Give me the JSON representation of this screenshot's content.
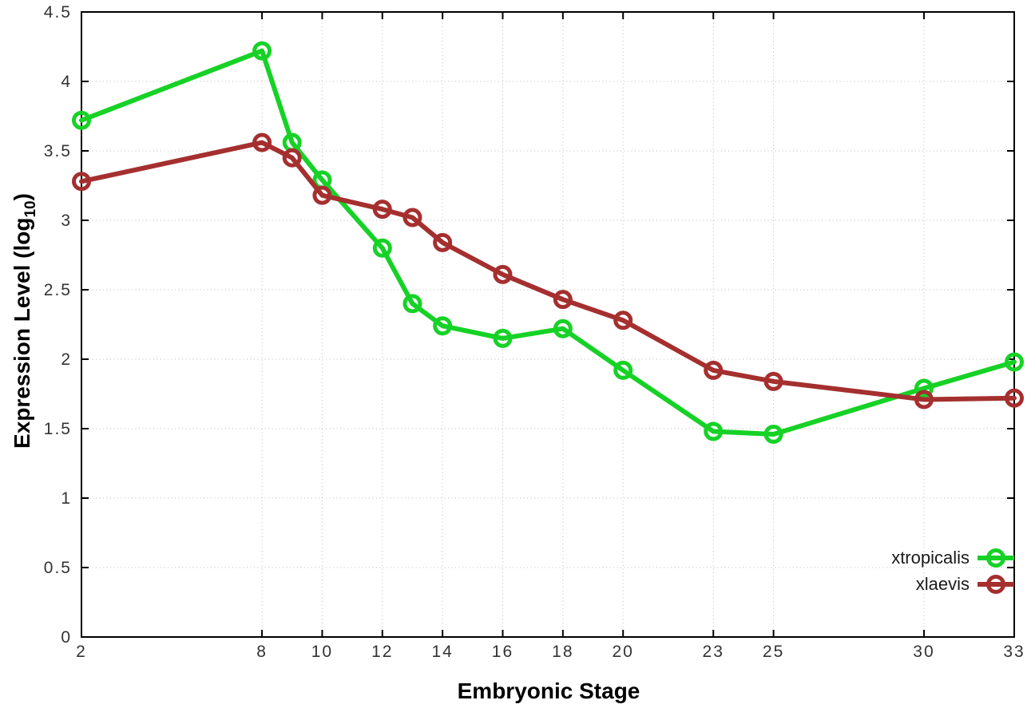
{
  "chart_data": {
    "type": "line",
    "title": "",
    "xlabel": "Embryonic Stage",
    "ylabel_prefix": "Expression Level (log",
    "ylabel_sub": "10",
    "ylabel_suffix": ")",
    "x": [
      2,
      8,
      9,
      10,
      12,
      13,
      14,
      16,
      18,
      20,
      23,
      25,
      30,
      33
    ],
    "series": [
      {
        "name": "xtropicalis",
        "color": "#16d226",
        "values": [
          3.72,
          4.22,
          3.56,
          3.29,
          2.8,
          2.4,
          2.24,
          2.15,
          2.22,
          1.92,
          1.48,
          1.46,
          1.79,
          1.98
        ]
      },
      {
        "name": "xlaevis",
        "color": "#a52f2f",
        "values": [
          3.28,
          3.56,
          3.45,
          3.18,
          3.08,
          3.02,
          2.84,
          2.61,
          2.43,
          2.28,
          1.92,
          1.84,
          1.71,
          1.72
        ]
      }
    ],
    "x_ticks": [
      {
        "v": 2,
        "label": "2"
      },
      {
        "v": 8,
        "label": "8"
      },
      {
        "v": 10,
        "label": "10"
      },
      {
        "v": 12,
        "label": "12"
      },
      {
        "v": 14,
        "label": "14"
      },
      {
        "v": 16,
        "label": "16"
      },
      {
        "v": 18,
        "label": "18"
      },
      {
        "v": 20,
        "label": "20"
      },
      {
        "v": 23,
        "label": "23"
      },
      {
        "v": 25,
        "label": "25"
      },
      {
        "v": 30,
        "label": "30"
      },
      {
        "v": 33,
        "label": "33"
      }
    ],
    "y_ticks": [
      {
        "v": 0,
        "label": "0"
      },
      {
        "v": 0.5,
        "label": "0.5"
      },
      {
        "v": 1,
        "label": "1"
      },
      {
        "v": 1.5,
        "label": "1.5"
      },
      {
        "v": 2,
        "label": "2"
      },
      {
        "v": 2.5,
        "label": "2.5"
      },
      {
        "v": 3,
        "label": "3"
      },
      {
        "v": 3.5,
        "label": "3.5"
      },
      {
        "v": 4,
        "label": "4"
      },
      {
        "v": 4.5,
        "label": "4.5"
      }
    ],
    "xlim": [
      2,
      33
    ],
    "ylim": [
      0,
      4.5
    ],
    "grid": true,
    "legend_position": "bottom-right",
    "marker": "open-circle",
    "colors": {
      "border": "#000000",
      "gridline": "#bdbdbd",
      "tick_label": "#333333"
    }
  }
}
